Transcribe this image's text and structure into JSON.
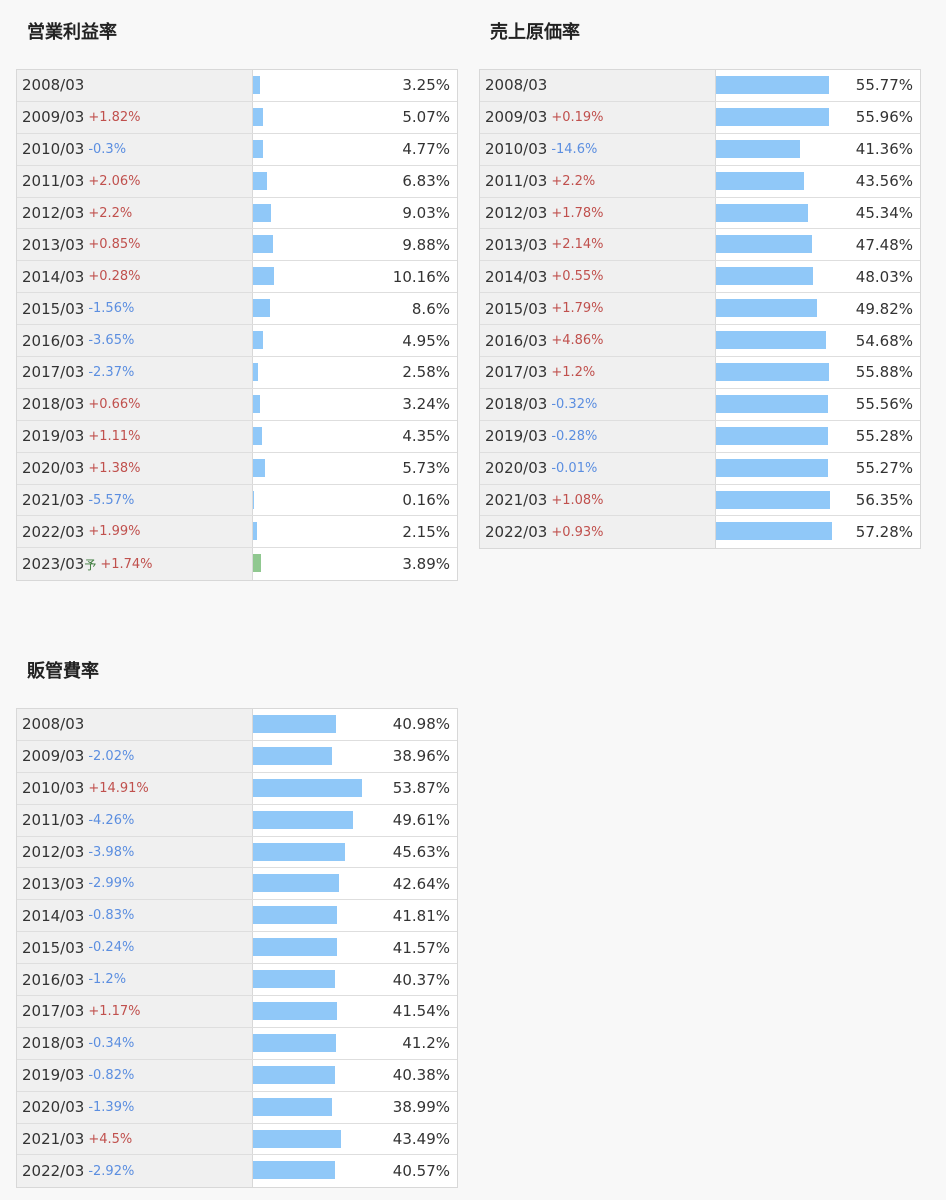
{
  "chart_data": [
    {
      "type": "bar",
      "title": "営業利益率",
      "categories": [
        "2008/03",
        "2009/03",
        "2010/03",
        "2011/03",
        "2012/03",
        "2013/03",
        "2014/03",
        "2015/03",
        "2016/03",
        "2017/03",
        "2018/03",
        "2019/03",
        "2020/03",
        "2021/03",
        "2022/03",
        "2023/03"
      ],
      "notes": [
        null,
        null,
        null,
        null,
        null,
        null,
        null,
        null,
        null,
        null,
        null,
        null,
        null,
        null,
        null,
        "予"
      ],
      "values": [
        3.25,
        5.07,
        4.77,
        6.83,
        9.03,
        9.88,
        10.16,
        8.6,
        4.95,
        2.58,
        3.24,
        4.35,
        5.73,
        0.16,
        2.15,
        3.89
      ],
      "value_labels": [
        "3.25%",
        "5.07%",
        "4.77%",
        "6.83%",
        "9.03%",
        "9.88%",
        "10.16%",
        "8.6%",
        "4.95%",
        "2.58%",
        "3.24%",
        "4.35%",
        "5.73%",
        "0.16%",
        "2.15%",
        "3.89%"
      ],
      "changes": [
        null,
        1.82,
        -0.3,
        2.06,
        2.2,
        0.85,
        0.28,
        -1.56,
        -3.65,
        -2.37,
        0.66,
        1.11,
        1.38,
        -5.57,
        1.99,
        1.74
      ],
      "change_labels": [
        null,
        "+1.82%",
        "-0.3%",
        "+2.06%",
        "+2.2%",
        "+0.85%",
        "+0.28%",
        "-1.56%",
        "-3.65%",
        "-2.37%",
        "+0.66%",
        "+1.11%",
        "+1.38%",
        "-5.57%",
        "+1.99%",
        "+1.74%"
      ],
      "color": "#90c8f8",
      "forecast_color": "#90c890",
      "up_color": "#c0504d",
      "down_color": "#5b8ee0"
    },
    {
      "type": "bar",
      "title": "売上原価率",
      "categories": [
        "2008/03",
        "2009/03",
        "2010/03",
        "2011/03",
        "2012/03",
        "2013/03",
        "2014/03",
        "2015/03",
        "2016/03",
        "2017/03",
        "2018/03",
        "2019/03",
        "2020/03",
        "2021/03",
        "2022/03"
      ],
      "values": [
        55.77,
        55.96,
        41.36,
        43.56,
        45.34,
        47.48,
        48.03,
        49.82,
        54.68,
        55.88,
        55.56,
        55.28,
        55.27,
        56.35,
        57.28
      ],
      "value_labels": [
        "55.77%",
        "55.96%",
        "41.36%",
        "43.56%",
        "45.34%",
        "47.48%",
        "48.03%",
        "49.82%",
        "54.68%",
        "55.88%",
        "55.56%",
        "55.28%",
        "55.27%",
        "56.35%",
        "57.28%"
      ],
      "changes": [
        null,
        0.19,
        -14.6,
        2.2,
        1.78,
        2.14,
        0.55,
        1.79,
        4.86,
        1.2,
        -0.32,
        -0.28,
        -0.01,
        1.08,
        0.93
      ],
      "change_labels": [
        null,
        "+0.19%",
        "-14.6%",
        "+2.2%",
        "+1.78%",
        "+2.14%",
        "+0.55%",
        "+1.79%",
        "+4.86%",
        "+1.2%",
        "-0.32%",
        "-0.28%",
        "-0.01%",
        "+1.08%",
        "+0.93%"
      ],
      "color": "#90c8f8",
      "up_color": "#c0504d",
      "down_color": "#5b8ee0"
    },
    {
      "type": "bar",
      "title": "販管費率",
      "categories": [
        "2008/03",
        "2009/03",
        "2010/03",
        "2011/03",
        "2012/03",
        "2013/03",
        "2014/03",
        "2015/03",
        "2016/03",
        "2017/03",
        "2018/03",
        "2019/03",
        "2020/03",
        "2021/03",
        "2022/03"
      ],
      "values": [
        40.98,
        38.96,
        53.87,
        49.61,
        45.63,
        42.64,
        41.81,
        41.57,
        40.37,
        41.54,
        41.2,
        40.38,
        38.99,
        43.49,
        40.57
      ],
      "value_labels": [
        "40.98%",
        "38.96%",
        "53.87%",
        "49.61%",
        "45.63%",
        "42.64%",
        "41.81%",
        "41.57%",
        "40.37%",
        "41.54%",
        "41.2%",
        "40.38%",
        "38.99%",
        "43.49%",
        "40.57%"
      ],
      "changes": [
        null,
        -2.02,
        14.91,
        -4.26,
        -3.98,
        -2.99,
        -0.83,
        -0.24,
        -1.2,
        1.17,
        -0.34,
        -0.82,
        -1.39,
        4.5,
        -2.92
      ],
      "change_labels": [
        null,
        "-2.02%",
        "+14.91%",
        "-4.26%",
        "-3.98%",
        "-2.99%",
        "-0.83%",
        "-0.24%",
        "-1.2%",
        "+1.17%",
        "-0.34%",
        "-0.82%",
        "-1.39%",
        "+4.5%",
        "-2.92%"
      ],
      "color": "#90c8f8",
      "up_color": "#c0504d",
      "down_color": "#5b8ee0"
    }
  ]
}
